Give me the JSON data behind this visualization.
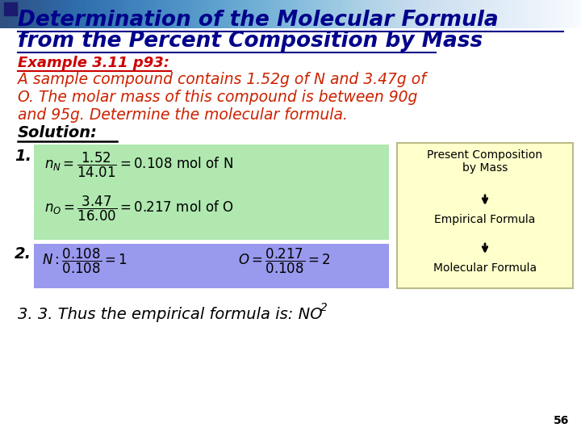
{
  "bg_color": "#ffffff",
  "title_color": "#00008B",
  "title_line1": "Determination of the Molecular Formula",
  "title_line2": "from the Percent Composition by Mass",
  "example_color": "#CC0000",
  "example_text": "Example 3.11 p93:",
  "body_color": "#CC2200",
  "body_line1": "A sample compound contains 1.52g of N and 3.47g of",
  "body_line2": "O. The molar mass of this compound is between 90g",
  "body_line3": "and 95g. Determine the molecular formula.",
  "solution_text": "Solution:",
  "solution_color": "#000000",
  "green_box_color": "#B0E8B0",
  "blue_box_color": "#9999EE",
  "yellow_box_color": "#FFFFCC",
  "yellow_border_color": "#BBBB88",
  "present_comp_text": "Present Composition\nby Mass",
  "empirical_formula_text": "Empirical Formula",
  "molecular_formula_text": "Molecular Formula",
  "slide_number": "56",
  "step1": "1.",
  "step2": "2.",
  "step3_text": "3. 3. Thus the empirical formula is: NO",
  "header_dark": "#1a1a6e",
  "header_light": "#d0d0e8"
}
